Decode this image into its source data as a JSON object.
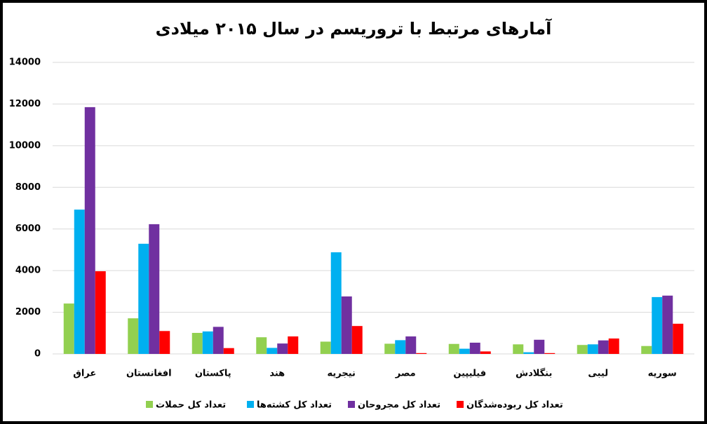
{
  "chart_data": {
    "type": "bar",
    "title": "آمارهای مرتبط با تروریسم در سال ۲۰۱۵ میلادی",
    "categories": [
      "عراق",
      "افغانستان",
      "پاکستان",
      "هند",
      "نیجریه",
      "مصر",
      "فیلیپین",
      "بنگلادش",
      "لیبی",
      "سوریه"
    ],
    "series": [
      {
        "name": "تعداد کل حملات",
        "color": "#92d050",
        "values": [
          2420,
          1710,
          1010,
          800,
          590,
          490,
          480,
          460,
          430,
          380
        ]
      },
      {
        "name": "تعداد کل کشته‌ها",
        "color": "#00b0f0",
        "values": [
          6930,
          5290,
          1080,
          290,
          4880,
          660,
          250,
          80,
          460,
          2730
        ]
      },
      {
        "name": "تعداد کل مجروحان",
        "color": "#7030a0",
        "values": [
          11850,
          6230,
          1300,
          500,
          2760,
          840,
          540,
          680,
          650,
          2800
        ]
      },
      {
        "name": "تعداد کل ربوده‌شدگان",
        "color": "#ff0000",
        "values": [
          3970,
          1100,
          280,
          840,
          1340,
          40,
          120,
          40,
          740,
          1450
        ]
      }
    ],
    "ylim": [
      0,
      14000
    ],
    "yticks": [
      0,
      2000,
      4000,
      6000,
      8000,
      10000,
      12000,
      14000
    ],
    "grid": true
  }
}
